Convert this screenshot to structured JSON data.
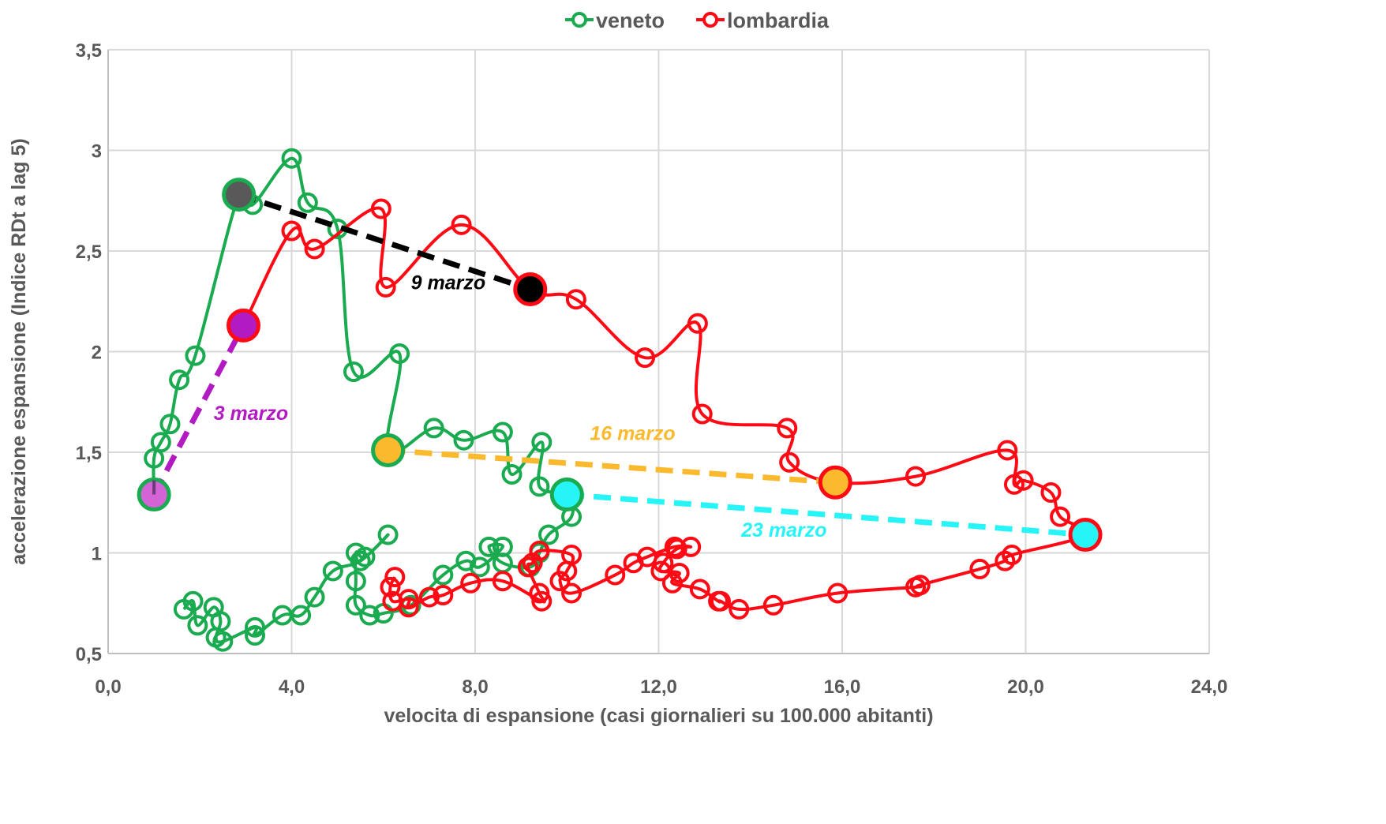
{
  "chart_data": {
    "type": "scatter",
    "title": "",
    "xlabel": "velocita di espansione (casi giornalieri su 100.000 abitanti)",
    "ylabel": "accelerazione espansione (Indice RDt a lag 5)",
    "xlim": [
      0,
      24
    ],
    "ylim": [
      0.5,
      3.5
    ],
    "grid": true,
    "legend_position": "top-center",
    "x_ticks": [
      "0,0",
      "4,0",
      "8,0",
      "12,0",
      "16,0",
      "20,0",
      "24,0"
    ],
    "x_tick_values": [
      0,
      4,
      8,
      12,
      16,
      20,
      24
    ],
    "y_ticks": [
      "0,5",
      "1",
      "1,5",
      "2",
      "2,5",
      "3",
      "3,5"
    ],
    "y_tick_values": [
      0.5,
      1,
      1.5,
      2,
      2.5,
      3,
      3.5
    ],
    "series": [
      {
        "name": "veneto",
        "color": "#1AAA4F",
        "points": [
          [
            1.0,
            1.29
          ],
          [
            1.0,
            1.47
          ],
          [
            1.15,
            1.55
          ],
          [
            1.35,
            1.64
          ],
          [
            1.55,
            1.86
          ],
          [
            1.9,
            1.98
          ],
          [
            2.85,
            2.78
          ],
          [
            3.15,
            2.73
          ],
          [
            4.0,
            2.96
          ],
          [
            4.35,
            2.74
          ],
          [
            5.0,
            2.61
          ],
          [
            5.35,
            1.9
          ],
          [
            6.35,
            1.99
          ],
          [
            6.1,
            1.51
          ],
          [
            7.1,
            1.62
          ],
          [
            7.75,
            1.56
          ],
          [
            8.6,
            1.6
          ],
          [
            8.8,
            1.39
          ],
          [
            9.45,
            1.55
          ],
          [
            9.4,
            1.33
          ],
          [
            10.0,
            1.29
          ],
          [
            10.1,
            1.18
          ],
          [
            9.6,
            1.09
          ],
          [
            9.4,
            1.0
          ],
          [
            9.2,
            0.93
          ],
          [
            8.6,
            0.95
          ],
          [
            8.3,
            1.03
          ],
          [
            8.6,
            1.03
          ],
          [
            8.1,
            0.93
          ],
          [
            7.8,
            0.96
          ],
          [
            7.3,
            0.89
          ],
          [
            6.6,
            0.74
          ],
          [
            6.0,
            0.7
          ],
          [
            5.7,
            0.69
          ],
          [
            5.4,
            0.74
          ],
          [
            5.4,
            0.86
          ],
          [
            5.4,
            1.0
          ],
          [
            5.6,
            0.98
          ],
          [
            6.1,
            1.09
          ],
          [
            5.5,
            0.96
          ],
          [
            4.9,
            0.91
          ],
          [
            4.5,
            0.78
          ],
          [
            4.2,
            0.69
          ],
          [
            3.8,
            0.69
          ],
          [
            3.2,
            0.59
          ],
          [
            3.2,
            0.63
          ],
          [
            2.5,
            0.56
          ],
          [
            2.35,
            0.58
          ],
          [
            2.45,
            0.66
          ],
          [
            2.3,
            0.73
          ],
          [
            1.95,
            0.64
          ],
          [
            1.85,
            0.76
          ],
          [
            1.65,
            0.72
          ]
        ]
      },
      {
        "name": "lombardia",
        "color": "#FF0A14",
        "points": [
          [
            2.95,
            2.13
          ],
          [
            4.0,
            2.6
          ],
          [
            4.5,
            2.51
          ],
          [
            5.95,
            2.71
          ],
          [
            6.05,
            2.32
          ],
          [
            7.7,
            2.63
          ],
          [
            9.2,
            2.31
          ],
          [
            10.2,
            2.26
          ],
          [
            11.7,
            1.97
          ],
          [
            12.85,
            2.14
          ],
          [
            12.95,
            1.69
          ],
          [
            14.8,
            1.62
          ],
          [
            14.85,
            1.45
          ],
          [
            15.85,
            1.35
          ],
          [
            17.6,
            1.38
          ],
          [
            19.6,
            1.51
          ],
          [
            19.75,
            1.34
          ],
          [
            19.95,
            1.36
          ],
          [
            20.55,
            1.3
          ],
          [
            20.75,
            1.18
          ],
          [
            21.3,
            1.09
          ],
          [
            19.7,
            0.99
          ],
          [
            19.55,
            0.96
          ],
          [
            19.0,
            0.92
          ],
          [
            17.7,
            0.84
          ],
          [
            17.6,
            0.83
          ],
          [
            15.9,
            0.8
          ],
          [
            14.5,
            0.74
          ],
          [
            13.75,
            0.72
          ],
          [
            13.35,
            0.76
          ],
          [
            13.3,
            0.76
          ],
          [
            12.9,
            0.82
          ],
          [
            12.3,
            0.85
          ],
          [
            12.45,
            0.9
          ],
          [
            12.05,
            0.91
          ],
          [
            12.1,
            0.95
          ],
          [
            12.4,
            1.02
          ],
          [
            12.7,
            1.03
          ],
          [
            12.35,
            1.03
          ],
          [
            11.75,
            0.98
          ],
          [
            11.45,
            0.95
          ],
          [
            11.05,
            0.89
          ],
          [
            10.1,
            0.8
          ],
          [
            9.85,
            0.86
          ],
          [
            10.0,
            0.91
          ],
          [
            10.1,
            0.99
          ],
          [
            9.4,
            1.01
          ],
          [
            9.25,
            0.95
          ],
          [
            9.15,
            0.93
          ],
          [
            9.4,
            0.8
          ],
          [
            9.45,
            0.76
          ],
          [
            8.6,
            0.86
          ],
          [
            7.9,
            0.85
          ],
          [
            7.3,
            0.79
          ],
          [
            7.0,
            0.78
          ],
          [
            6.55,
            0.73
          ],
          [
            6.55,
            0.77
          ],
          [
            6.2,
            0.76
          ],
          [
            6.15,
            0.83
          ],
          [
            6.25,
            0.88
          ]
        ]
      }
    ],
    "highlights": [
      {
        "label": "3 marzo",
        "color": "#B31BC2",
        "label_at": [
          2.3,
          1.66
        ],
        "veneto_point": [
          1.0,
          1.29
        ],
        "veneto_fill": "#D464D6",
        "lombardia_point": [
          2.95,
          2.13
        ],
        "lombardia_fill": "#B31BC2"
      },
      {
        "label": "9 marzo",
        "color": "#000000",
        "label_at": [
          6.6,
          2.31
        ],
        "veneto_point": [
          2.85,
          2.78
        ],
        "veneto_fill": "#595959",
        "lombardia_point": [
          9.2,
          2.31
        ],
        "lombardia_fill": "#000000"
      },
      {
        "label": "16 marzo",
        "color": "#FBBA2D",
        "label_at": [
          10.5,
          1.56
        ],
        "veneto_point": [
          6.1,
          1.51
        ],
        "veneto_fill": "#FBBA2D",
        "lombardia_point": [
          15.85,
          1.35
        ],
        "lombardia_fill": "#FBBA2D"
      },
      {
        "label": "23 marzo",
        "color": "#26F4F6",
        "label_at": [
          13.8,
          1.08
        ],
        "veneto_point": [
          10.0,
          1.29
        ],
        "veneto_fill": "#26F4F6",
        "lombardia_point": [
          21.3,
          1.09
        ],
        "lombardia_fill": "#26F4F6"
      }
    ]
  }
}
